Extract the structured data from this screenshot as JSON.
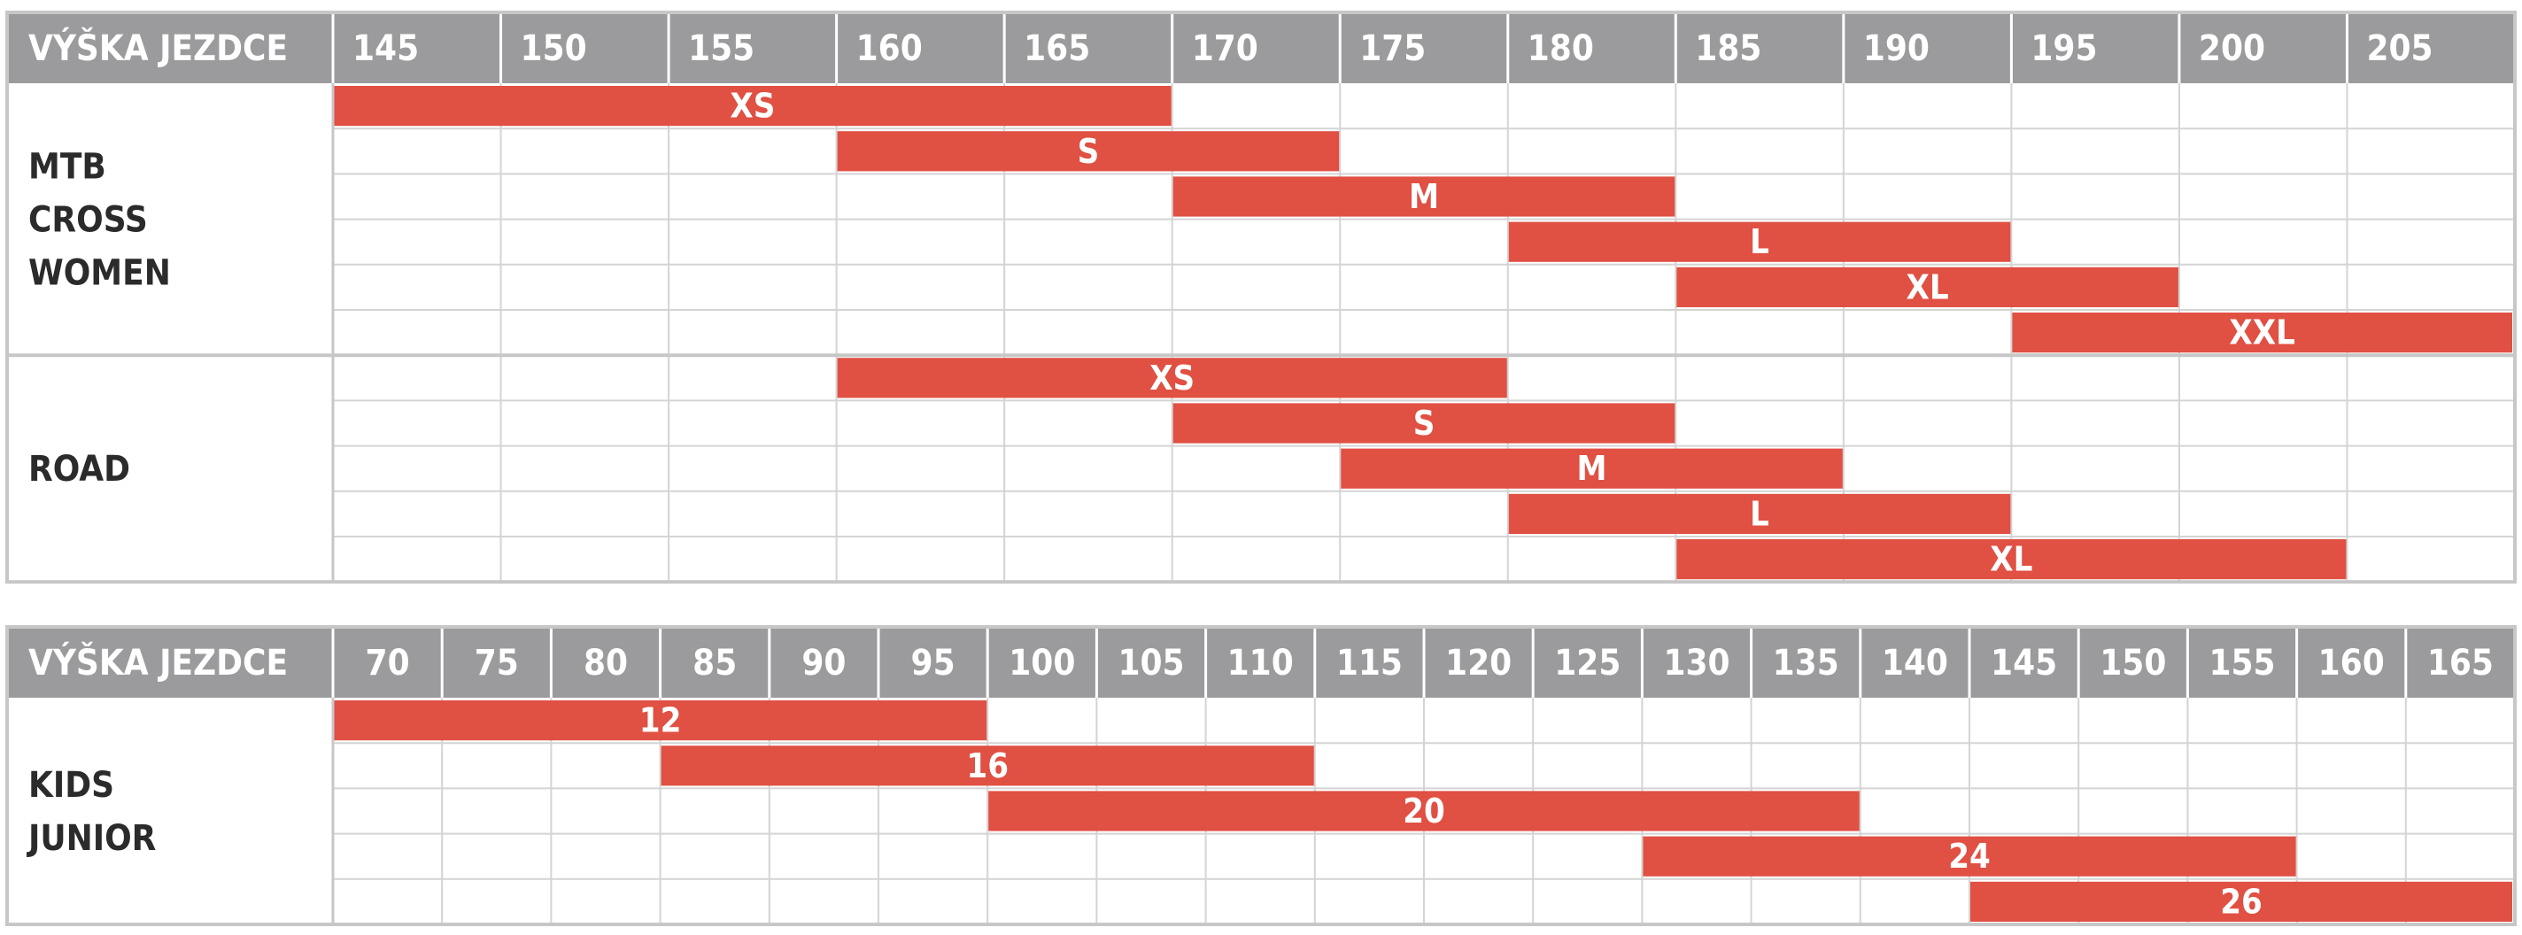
{
  "colors": {
    "header_bg": "#9b9a9c",
    "bar": "#e05043",
    "grid": "#d4d4d4",
    "frame": "#c7c7c7",
    "group_text": "#2b2b2b"
  },
  "chart_data": [
    {
      "type": "range-bar",
      "header_label": "VÝŠKA JEZDCE",
      "ticks": [
        145,
        150,
        155,
        160,
        165,
        170,
        175,
        180,
        185,
        190,
        195,
        200,
        205
      ],
      "xlim": [
        145,
        210
      ],
      "groups": [
        {
          "lines": [
            "MTB",
            "CROSS",
            "WOMEN"
          ],
          "bars": [
            {
              "label": "XS",
              "from": 145,
              "to": 170
            },
            {
              "label": "S",
              "from": 160,
              "to": 175
            },
            {
              "label": "M",
              "from": 170,
              "to": 185
            },
            {
              "label": "L",
              "from": 180,
              "to": 195
            },
            {
              "label": "XL",
              "from": 185,
              "to": 200
            },
            {
              "label": "XXL",
              "from": 195,
              "to": 210
            }
          ]
        },
        {
          "lines": [
            "ROAD"
          ],
          "bars": [
            {
              "label": "XS",
              "from": 160,
              "to": 180
            },
            {
              "label": "S",
              "from": 170,
              "to": 185
            },
            {
              "label": "M",
              "from": 175,
              "to": 190
            },
            {
              "label": "L",
              "from": 180,
              "to": 195
            },
            {
              "label": "XL",
              "from": 185,
              "to": 205
            }
          ]
        }
      ]
    },
    {
      "type": "range-bar",
      "header_label": "VÝŠKA JEZDCE",
      "ticks": [
        70,
        75,
        80,
        85,
        90,
        95,
        100,
        105,
        110,
        115,
        120,
        125,
        130,
        135,
        140,
        145,
        150,
        155,
        160,
        165
      ],
      "xlim": [
        70,
        170
      ],
      "groups": [
        {
          "lines": [
            "KIDS",
            "JUNIOR"
          ],
          "bars": [
            {
              "label": "12",
              "from": 70,
              "to": 100
            },
            {
              "label": "16",
              "from": 85,
              "to": 115
            },
            {
              "label": "20",
              "from": 100,
              "to": 140
            },
            {
              "label": "24",
              "from": 130,
              "to": 160
            },
            {
              "label": "26",
              "from": 145,
              "to": 170
            }
          ]
        }
      ]
    }
  ]
}
